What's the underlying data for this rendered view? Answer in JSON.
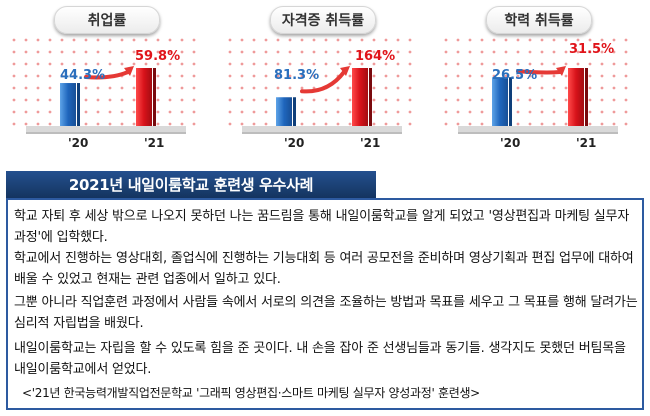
{
  "chart_data": [
    {
      "type": "bar",
      "title": "취업률",
      "categories": [
        "'20",
        "'21"
      ],
      "values": [
        44.3,
        59.8
      ],
      "value_labels": [
        "44.3%",
        "59.8%"
      ],
      "colors": [
        "#2a6fbd",
        "#e0141a"
      ]
    },
    {
      "type": "bar",
      "title": "자격증 취득률",
      "categories": [
        "'20",
        "'21"
      ],
      "values": [
        81.3,
        164
      ],
      "value_labels": [
        "81.3%",
        "164%"
      ],
      "colors": [
        "#2a6fbd",
        "#e0141a"
      ]
    },
    {
      "type": "bar",
      "title": "학력 취득률",
      "categories": [
        "'20",
        "'21"
      ],
      "values": [
        26.5,
        31.5
      ],
      "value_labels": [
        "26.5%",
        "31.5%"
      ],
      "colors": [
        "#2a6fbd",
        "#e0141a"
      ]
    }
  ],
  "case": {
    "heading": "2021년 내일이룸학교 훈련생 우수사례",
    "paragraphs": [
      "학교 자퇴 후 세상 밖으로 나오지 못하던 나는 꿈드림을 통해 내일이룸학교를 알게 되었고 '영상편집과 마케팅 실무자 과정'에 입학했다.",
      "학교에서 진행하는 영상대회, 졸업식에 진행하는 기능대회 등 여러 공모전을 준비하며 영상기획과 편집 업무에 대하여 배울 수 있었고 현재는 관련 업종에서 일하고 있다.",
      "그뿐 아니라 직업훈련 과정에서 사람들 속에서 서로의 의견을 조율하는 방법과 목표를 세우고 그 목표를 행해 달려가는 심리적 자립법을 배웠다.",
      "내일이룸학교는 자립을 할 수 있도록 힘을 준 곳이다. 내 손을 잡아 준 선생님들과 동기들. 생각지도 못했던 버팀목을 내일이룸학교에서 얻었다."
    ],
    "source": "<'21년 한국능력개발직업전문학교 '그래픽 영상편집·스마트 마케팅 실무자 양성과정' 훈련생>"
  }
}
